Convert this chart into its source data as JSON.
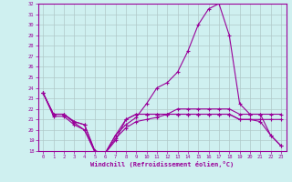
{
  "xlabel": "Windchill (Refroidissement éolien,°C)",
  "x": [
    0,
    1,
    2,
    3,
    4,
    5,
    6,
    7,
    8,
    9,
    10,
    11,
    12,
    13,
    14,
    15,
    16,
    17,
    18,
    19,
    20,
    21,
    22,
    23
  ],
  "line1": [
    23.5,
    21.5,
    21.5,
    20.8,
    20.5,
    18.0,
    17.8,
    19.0,
    21.0,
    21.5,
    21.5,
    21.5,
    21.5,
    22.0,
    22.0,
    22.0,
    22.0,
    22.0,
    22.0,
    21.5,
    21.5,
    21.5,
    21.5,
    21.5
  ],
  "line2": [
    23.5,
    21.5,
    21.5,
    20.8,
    20.5,
    18.0,
    17.8,
    19.5,
    21.0,
    21.5,
    21.5,
    21.5,
    21.5,
    21.5,
    21.5,
    21.5,
    21.5,
    21.5,
    21.5,
    21.0,
    21.0,
    21.0,
    21.0,
    21.0
  ],
  "line3": [
    23.5,
    21.5,
    21.5,
    20.7,
    20.0,
    18.0,
    17.8,
    19.5,
    20.5,
    21.2,
    22.5,
    24.0,
    24.5,
    25.5,
    27.5,
    30.0,
    31.5,
    32.0,
    29.0,
    22.5,
    21.5,
    21.5,
    19.5,
    18.5
  ],
  "line4": [
    23.5,
    21.3,
    21.3,
    20.5,
    20.0,
    17.9,
    17.8,
    19.2,
    20.2,
    20.8,
    21.0,
    21.2,
    21.5,
    21.5,
    21.5,
    21.5,
    21.5,
    21.5,
    21.5,
    21.0,
    21.0,
    20.8,
    19.5,
    18.5
  ],
  "ylim": [
    18,
    32
  ],
  "yticks": [
    18,
    19,
    20,
    21,
    22,
    23,
    24,
    25,
    26,
    27,
    28,
    29,
    30,
    31,
    32
  ],
  "xticks": [
    0,
    1,
    2,
    3,
    4,
    5,
    6,
    7,
    8,
    9,
    10,
    11,
    12,
    13,
    14,
    15,
    16,
    17,
    18,
    19,
    20,
    21,
    22,
    23
  ],
  "line_color": "#990099",
  "bg_color": "#cff0f0",
  "grid_color": "#b0c8c8"
}
